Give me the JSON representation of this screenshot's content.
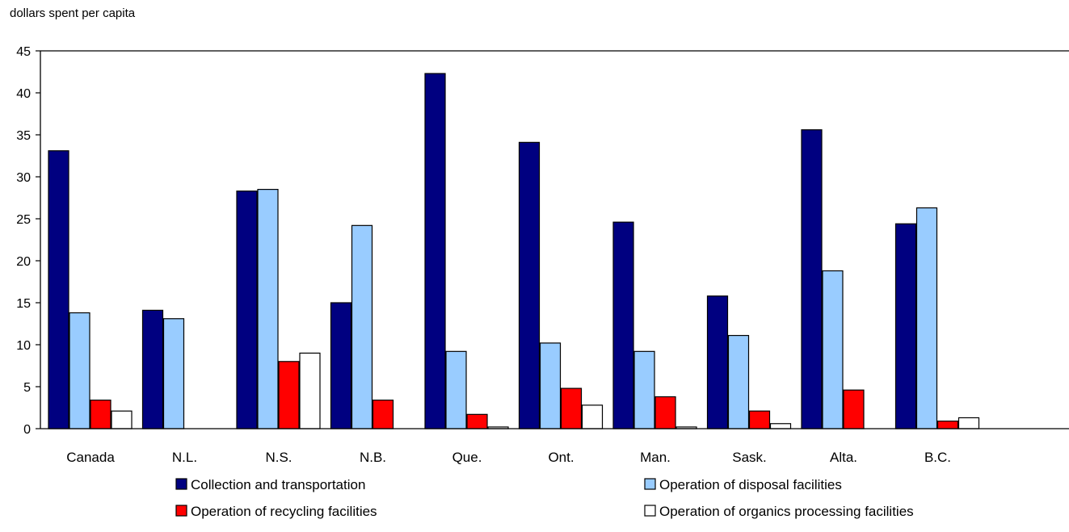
{
  "chart_data": {
    "type": "bar",
    "ylabel": "dollars spent per capita",
    "ylim": [
      0,
      45
    ],
    "yticks": [
      0,
      5,
      10,
      15,
      20,
      25,
      30,
      35,
      40,
      45
    ],
    "grid": false,
    "legend_position": "bottom",
    "categories": [
      "Canada",
      "N.L.",
      "N.S.",
      "N.B.",
      "Que.",
      "Ont.",
      "Man.",
      "Sask.",
      "Alta.",
      "B.C."
    ],
    "series": [
      {
        "name": "Collection and transportation",
        "color": "#000080",
        "values": [
          33.1,
          14.1,
          28.3,
          15.0,
          42.3,
          34.1,
          24.6,
          15.8,
          35.6,
          24.4
        ]
      },
      {
        "name": "Operation of disposal facilities",
        "color": "#99ccff",
        "values": [
          13.8,
          13.1,
          28.5,
          24.2,
          9.2,
          10.2,
          9.2,
          11.1,
          18.8,
          26.3
        ]
      },
      {
        "name": "Operation of recycling facilities",
        "color": "#ff0000",
        "values": [
          3.4,
          0,
          8.0,
          3.4,
          1.7,
          4.8,
          3.8,
          2.1,
          4.6,
          0.9
        ]
      },
      {
        "name": "Operation of organics processing facilities",
        "color": "#ffffff",
        "values": [
          2.1,
          0,
          9.0,
          0,
          0.2,
          2.8,
          0.2,
          0.6,
          0,
          1.3
        ]
      }
    ]
  }
}
